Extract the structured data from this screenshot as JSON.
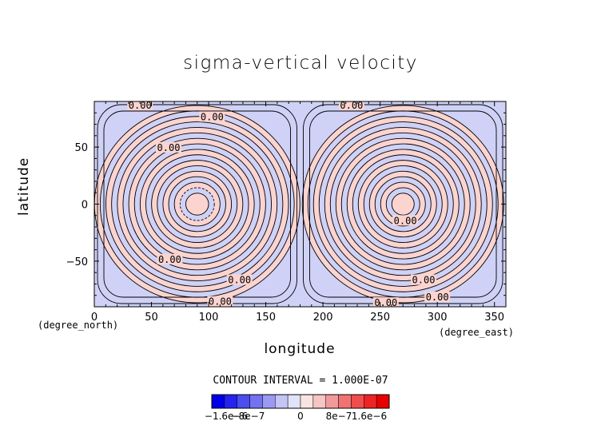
{
  "chart_data": {
    "type": "contour",
    "title": "sigma-vertical velocity",
    "xlabel": "longitude",
    "ylabel": "latitude",
    "x_unit": "(degree_east)",
    "y_unit": "(degree_north)",
    "xlim": [
      0,
      360
    ],
    "ylim": [
      -90,
      90
    ],
    "x_ticks": [
      0,
      50,
      100,
      150,
      200,
      250,
      300,
      350
    ],
    "y_ticks": [
      -50,
      0,
      50
    ],
    "contour_interval_text": "CONTOUR INTERVAL = 1.000E-07",
    "contour_interval": 1e-07,
    "features": [
      {
        "name": "wave-center-west",
        "lon": 90,
        "lat": 0
      },
      {
        "name": "wave-center-east",
        "lon": 270,
        "lat": 0
      }
    ],
    "contour_labels": [
      {
        "text": "0.00",
        "lon": 40,
        "lat": 85
      },
      {
        "text": "0.00",
        "lon": 103,
        "lat": 75
      },
      {
        "text": "0.00",
        "lon": 65,
        "lat": 48
      },
      {
        "text": "0.00",
        "lon": 66,
        "lat": -50
      },
      {
        "text": "0.00",
        "lon": 127,
        "lat": -68
      },
      {
        "text": "0.00",
        "lon": 110,
        "lat": -87
      },
      {
        "text": "0.00",
        "lon": 225,
        "lat": 85
      },
      {
        "text": "0.00",
        "lon": 272,
        "lat": -16
      },
      {
        "text": "0.00",
        "lon": 288,
        "lat": -68
      },
      {
        "text": "0.00",
        "lon": 300,
        "lat": -83
      },
      {
        "text": "0.00",
        "lon": 255,
        "lat": -88
      }
    ],
    "colorbar": {
      "colors": [
        "#0000e8",
        "#2424ee",
        "#4d4df0",
        "#7272f2",
        "#9a9af4",
        "#c4c4f6",
        "#e2e2fa",
        "#fae4e2",
        "#f6c6c4",
        "#f29a9a",
        "#f27272",
        "#f04d4d",
        "#ee2424",
        "#e80000"
      ],
      "tick_labels": [
        "−1.6e−6",
        "−8e−7",
        "0",
        "8e−7",
        "1.6e−6"
      ]
    }
  },
  "fill": {
    "positive": "#fbd4d0",
    "negative": "#cfd2f6"
  }
}
